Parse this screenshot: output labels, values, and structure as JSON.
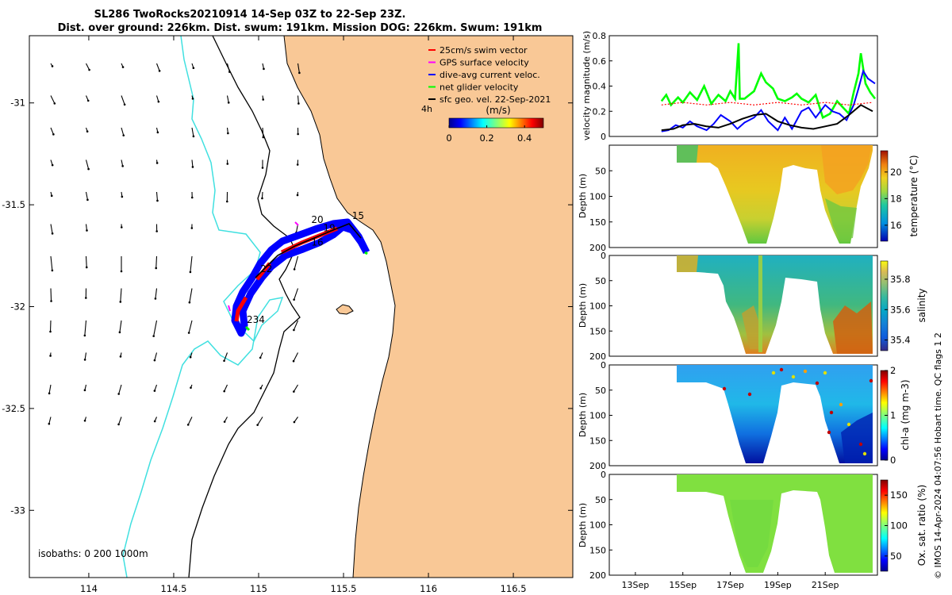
{
  "colors": {
    "land": "#f9c896",
    "ocean": "#ffffff",
    "isobath_200": "#40e0e0",
    "isobath_1000": "#000000",
    "swim": "#ff0000",
    "gps": "#ff00ff",
    "dive": "#0000ff",
    "net": "#00ff00",
    "geo": "#000000"
  },
  "chart_data": [
    {
      "type": "map",
      "title_line1": "SL286 TwoRocks20210914 14-Sep 03Z to 22-Sep 23Z.",
      "title_line2": "Dist. over ground: 226km. Dist. swum: 191km. Mission DOG: 226km. Swum: 191km",
      "xlim": [
        113.65,
        116.85
      ],
      "ylim": [
        -33.33,
        -30.67
      ],
      "x_ticks": [
        114,
        114.5,
        115,
        115.5,
        116,
        116.5
      ],
      "x_tick_labels": [
        "114",
        "114.5",
        "115",
        "115.5",
        "116",
        "116.5"
      ],
      "y_ticks": [
        -31,
        -31.5,
        -32,
        -32.5,
        -33
      ],
      "y_tick_labels": [
        "-31",
        "-31.5",
        "-32",
        "-32.5",
        "-33"
      ],
      "legend": [
        {
          "label": "25cm/s swim vector",
          "color": "#ff0000"
        },
        {
          "label": "GPS surface velocity",
          "color": "#ff00ff"
        },
        {
          "label": "dive-avg current veloc.",
          "color": "#0000ff"
        },
        {
          "label": "net glider velocity",
          "color": "#00ff00"
        },
        {
          "label": "sfc geo. vel. 22-Sep-2021",
          "color": "#000000"
        }
      ],
      "legend_note": "4h",
      "colorbar_title": "(m/s)",
      "colorbar_ticks": [
        "0",
        "0.2",
        "0.4"
      ],
      "colorbar_range": [
        0,
        0.5
      ],
      "isobath_label": "isobaths: 0   200  1000m",
      "track_labels": [
        {
          "text": "15",
          "lon": 115.55,
          "lat": -31.57
        },
        {
          "text": "19",
          "lon": 115.38,
          "lat": -31.63
        },
        {
          "text": "20",
          "lon": 115.31,
          "lat": -31.59
        },
        {
          "text": "16",
          "lon": 115.31,
          "lat": -31.7
        },
        {
          "text": "22",
          "lon": 115.01,
          "lat": -31.83
        },
        {
          "text": "234",
          "lon": 114.93,
          "lat": -32.08
        }
      ]
    },
    {
      "type": "line",
      "ylabel": "velocity magnitude (m/s)",
      "ylim": [
        0,
        0.8
      ],
      "y_ticks": [
        0,
        0.2,
        0.4,
        0.6,
        0.8
      ],
      "y_tick_labels": [
        "0",
        "0.2",
        "0.4",
        "0.6",
        "0.8"
      ],
      "xlim_days": [
        11.9,
        23.2
      ],
      "series": [
        {
          "name": "net glider velocity",
          "color": "#00ff00",
          "t": [
            14.1,
            14.3,
            14.5,
            14.8,
            15.0,
            15.3,
            15.6,
            15.9,
            16.2,
            16.5,
            16.8,
            17.0,
            17.2,
            17.35,
            17.4,
            17.6,
            17.8,
            18.0,
            18.3,
            18.5,
            18.8,
            19.0,
            19.3,
            19.6,
            19.8,
            20.0,
            20.3,
            20.6,
            20.9,
            21.2,
            21.5,
            21.8,
            22.0,
            22.2,
            22.4,
            22.5,
            22.7,
            22.9,
            23.1
          ],
          "v": [
            0.28,
            0.33,
            0.25,
            0.31,
            0.27,
            0.35,
            0.29,
            0.4,
            0.26,
            0.33,
            0.28,
            0.36,
            0.3,
            0.74,
            0.3,
            0.3,
            0.33,
            0.36,
            0.5,
            0.43,
            0.38,
            0.3,
            0.28,
            0.31,
            0.34,
            0.3,
            0.27,
            0.33,
            0.15,
            0.18,
            0.28,
            0.22,
            0.18,
            0.35,
            0.5,
            0.66,
            0.42,
            0.35,
            0.3
          ]
        },
        {
          "name": "dive-avg current veloc.",
          "color": "#0000ff",
          "t": [
            14.1,
            14.4,
            14.7,
            15.0,
            15.3,
            15.6,
            16.0,
            16.3,
            16.6,
            17.0,
            17.3,
            17.6,
            18.0,
            18.3,
            18.6,
            19.0,
            19.3,
            19.6,
            20.0,
            20.3,
            20.6,
            21.0,
            21.3,
            21.6,
            21.9,
            22.2,
            22.4,
            22.6,
            22.8,
            23.1
          ],
          "v": [
            0.04,
            0.05,
            0.09,
            0.07,
            0.12,
            0.08,
            0.05,
            0.1,
            0.17,
            0.12,
            0.06,
            0.11,
            0.15,
            0.21,
            0.12,
            0.05,
            0.15,
            0.06,
            0.2,
            0.23,
            0.15,
            0.25,
            0.2,
            0.18,
            0.13,
            0.25,
            0.38,
            0.52,
            0.46,
            0.42
          ]
        },
        {
          "name": "sfc geo. vel.",
          "color": "#000000",
          "t": [
            14.1,
            14.6,
            15.0,
            15.5,
            16.0,
            16.5,
            17.0,
            17.5,
            18.0,
            18.5,
            19.0,
            19.5,
            20.0,
            20.5,
            21.0,
            21.5,
            22.0,
            22.5,
            23.0
          ],
          "v": [
            0.05,
            0.06,
            0.09,
            0.1,
            0.08,
            0.07,
            0.1,
            0.14,
            0.17,
            0.18,
            0.12,
            0.09,
            0.07,
            0.06,
            0.08,
            0.1,
            0.17,
            0.25,
            0.2
          ]
        }
      ]
    },
    {
      "type": "heatmap",
      "ylabel": "Depth (m)",
      "colorbar_label": "temperature (°C)",
      "colorbar_ticks": [
        "16",
        "18",
        "20"
      ],
      "y_ticks": [
        "50",
        "100",
        "150",
        "200"
      ],
      "palette": "parula"
    },
    {
      "type": "heatmap",
      "ylabel": "Depth (m)",
      "colorbar_label": "salinity",
      "colorbar_ticks": [
        "35.4",
        "35.6",
        "35.8"
      ],
      "y_ticks": [
        "0",
        "50",
        "100",
        "150",
        "200"
      ],
      "palette": "parula"
    },
    {
      "type": "heatmap",
      "ylabel": "Depth (m)",
      "colorbar_label": "chl-a (mg m-3)",
      "colorbar_ticks": [
        "0",
        "1",
        "2"
      ],
      "y_ticks": [
        "0",
        "50",
        "100",
        "150",
        "200"
      ],
      "palette": "jet"
    },
    {
      "type": "heatmap",
      "ylabel": "Depth (m)",
      "colorbar_label": "Ox. sat. ratio (%)",
      "colorbar_ticks": [
        "50",
        "100",
        "150"
      ],
      "y_ticks": [
        "0",
        "50",
        "100",
        "150",
        "200"
      ],
      "x_ticks": [
        13,
        15,
        17,
        19,
        21
      ],
      "x_tick_labels": [
        "13Sep",
        "15Sep",
        "17Sep",
        "19Sep",
        "21Sep"
      ],
      "palette": "jet"
    }
  ],
  "footer_text": "© IMOS 14-Apr-2024 04:07:56 Hobart time. QC flags 1  2"
}
